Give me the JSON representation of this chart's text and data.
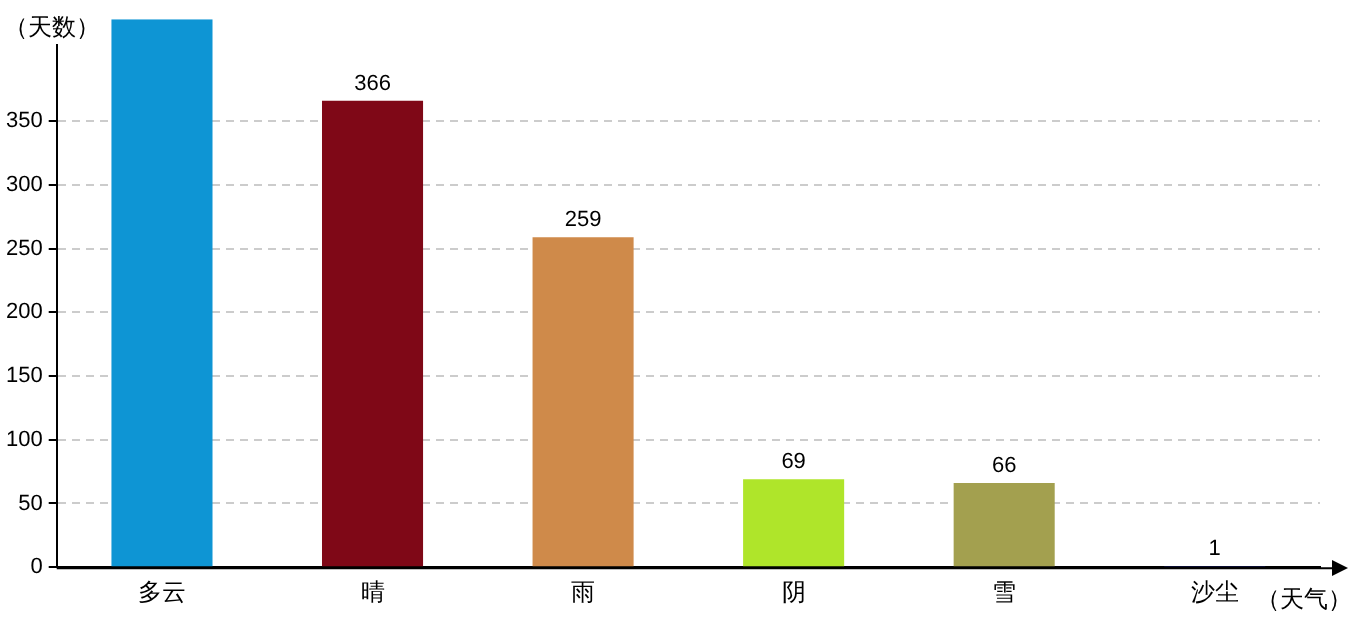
{
  "chart_data": {
    "type": "bar",
    "xlabel": "（天气）",
    "ylabel": "（天数）",
    "categories": [
      "多云",
      "晴",
      "雨",
      "阴",
      "雪",
      "沙尘"
    ],
    "values": [
      430,
      366,
      259,
      69,
      66,
      1
    ],
    "colors": [
      "#0e95d4",
      "#7f0817",
      "#cf8a4a",
      "#afe52a",
      "#a3a04f",
      "#2030c0"
    ],
    "value_labels": [
      null,
      "366",
      "259",
      "69",
      "66",
      "1"
    ],
    "ylim": [
      0,
      430
    ],
    "yticks": [
      0,
      50,
      100,
      150,
      200,
      250,
      300,
      350
    ],
    "grid": "y",
    "legend": false
  }
}
